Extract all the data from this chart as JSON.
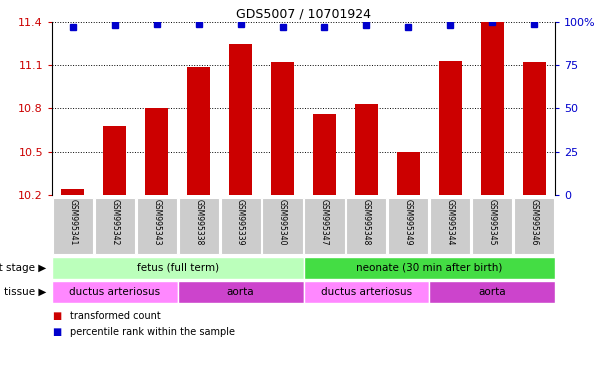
{
  "title": "GDS5007 / 10701924",
  "samples": [
    "GSM995341",
    "GSM995342",
    "GSM995343",
    "GSM995338",
    "GSM995339",
    "GSM995340",
    "GSM995347",
    "GSM995348",
    "GSM995349",
    "GSM995344",
    "GSM995345",
    "GSM995346"
  ],
  "bar_values": [
    10.24,
    10.68,
    10.8,
    11.09,
    11.25,
    11.12,
    10.76,
    10.83,
    10.5,
    11.13,
    11.4,
    11.12
  ],
  "percentile_values": [
    97,
    98,
    99,
    99,
    99,
    97,
    97,
    98,
    97,
    98,
    100,
    99
  ],
  "ylim": [
    10.2,
    11.4
  ],
  "yticks": [
    10.2,
    10.5,
    10.8,
    11.1,
    11.4
  ],
  "right_yticks": [
    0,
    25,
    50,
    75,
    100
  ],
  "right_ytick_labels": [
    "0",
    "25",
    "50",
    "75",
    "100%"
  ],
  "bar_color": "#cc0000",
  "percentile_color": "#0000cc",
  "bar_width": 0.55,
  "dev_stage_groups": [
    {
      "label": "fetus (full term)",
      "start": 0,
      "end": 6,
      "color": "#bbffbb"
    },
    {
      "label": "neonate (30 min after birth)",
      "start": 6,
      "end": 12,
      "color": "#44dd44"
    }
  ],
  "tissue_groups": [
    {
      "label": "ductus arteriosus",
      "start": 0,
      "end": 3,
      "color": "#ff88ff"
    },
    {
      "label": "aorta",
      "start": 3,
      "end": 6,
      "color": "#cc44cc"
    },
    {
      "label": "ductus arteriosus",
      "start": 6,
      "end": 9,
      "color": "#ff88ff"
    },
    {
      "label": "aorta",
      "start": 9,
      "end": 12,
      "color": "#cc44cc"
    }
  ],
  "legend_items": [
    {
      "label": "transformed count",
      "color": "#cc0000"
    },
    {
      "label": "percentile rank within the sample",
      "color": "#0000cc"
    }
  ],
  "ylabel_color": "#cc0000",
  "right_ylabel_color": "#0000cc",
  "tick_bg_color": "#cccccc",
  "grid_color": "#000000"
}
